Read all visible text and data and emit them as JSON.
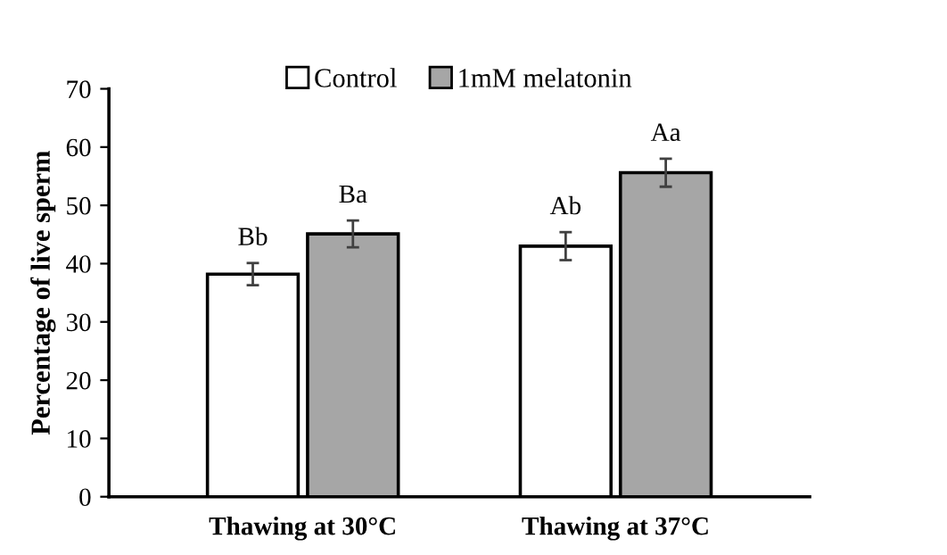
{
  "chart_data": {
    "type": "bar",
    "ylabel": "Percentage of live sperm",
    "categories": [
      "Thawing at 30°C",
      "Thawing at 37°C"
    ],
    "series": [
      {
        "name": "Control",
        "color": "#ffffff",
        "values": [
          38.2,
          43.0
        ],
        "errors": [
          1.9,
          2.4
        ],
        "value_labels": [
          "Bb",
          "Ab"
        ]
      },
      {
        "name": "1mM melatonin",
        "color": "#a6a6a6",
        "values": [
          45.1,
          55.6
        ],
        "errors": [
          2.3,
          2.4
        ],
        "value_labels": [
          "Ba",
          "Aa"
        ]
      }
    ],
    "ylim": [
      0,
      70
    ],
    "yticks": [
      0,
      10,
      20,
      30,
      40,
      50,
      60,
      70
    ],
    "grid": false,
    "legend": "top"
  }
}
